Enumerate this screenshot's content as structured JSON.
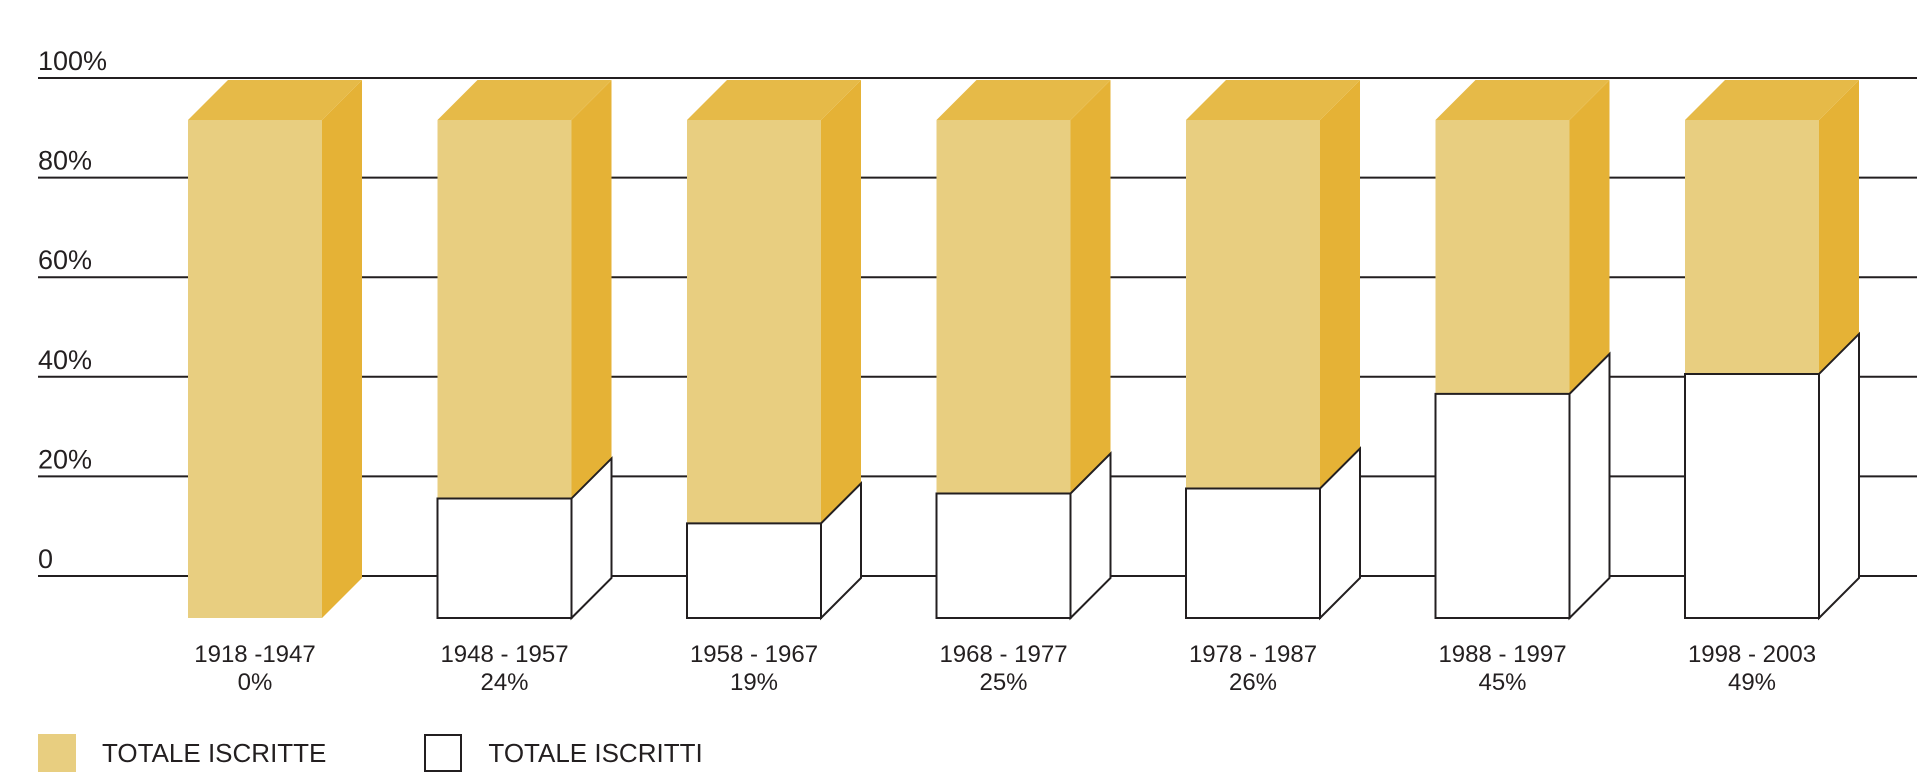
{
  "chart_data": {
    "type": "bar",
    "stacked": true,
    "style": "3d",
    "categories": [
      "1918 -1947",
      "1948 - 1957",
      "1958 - 1967",
      "1968 - 1977",
      "1978 - 1987",
      "1988 - 1997",
      "1998 - 2003"
    ],
    "data_labels": [
      "0%",
      "24%",
      "19%",
      "25%",
      "26%",
      "45%",
      "49%"
    ],
    "series": [
      {
        "name": "TOTALE ISCRITTI",
        "values": [
          0,
          24,
          19,
          25,
          26,
          45,
          49
        ]
      },
      {
        "name": "TOTALE ISCRITTE",
        "values": [
          100,
          76,
          81,
          75,
          74,
          55,
          51
        ]
      }
    ],
    "y_ticks": [
      "0",
      "20%",
      "40%",
      "60%",
      "80%",
      "100%"
    ],
    "ylim": [
      0,
      100
    ],
    "grid": true,
    "legend_position": "bottom-left",
    "colors": {
      "TOTALE ISCRITTE": {
        "front": "#e8ce80",
        "side": "#e5b236",
        "top": "#e6ba48"
      },
      "TOTALE ISCRITTI": {
        "front": "#ffffff",
        "side": "#ffffff",
        "top": "#ffffff",
        "stroke": "#231f20"
      },
      "grid": "#231f20"
    }
  },
  "legend": {
    "items": [
      {
        "label": "TOTALE ISCRITTE",
        "color": "#e8ce80",
        "outlined": false
      },
      {
        "label": "TOTALE ISCRITTI",
        "color": "#ffffff",
        "outlined": true
      }
    ]
  }
}
